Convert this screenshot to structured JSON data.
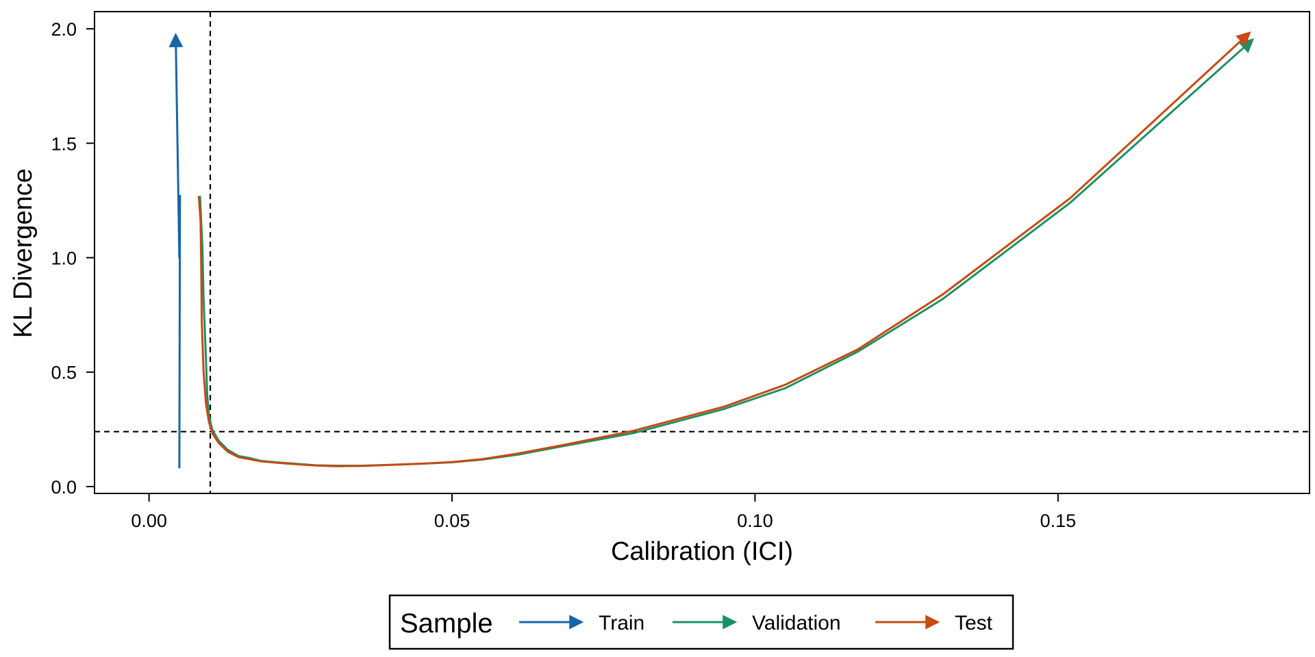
{
  "chart_data": {
    "type": "line",
    "xlabel": "Calibration (ICI)",
    "ylabel": "KL Divergence",
    "xlim": [
      -0.009,
      0.1915
    ],
    "ylim": [
      -0.03,
      2.075
    ],
    "xticks": [
      0.0,
      0.05,
      0.1,
      0.15
    ],
    "xtick_labels": [
      "0.00",
      "0.05",
      "0.10",
      "0.15"
    ],
    "yticks": [
      0.0,
      0.5,
      1.0,
      1.5,
      2.0
    ],
    "ytick_labels": [
      "0.0",
      "0.5",
      "1.0",
      "1.5",
      "2.0"
    ],
    "grid": false,
    "reference_lines": {
      "vertical_x": 0.0101,
      "horizontal_y": 0.24
    },
    "legend": {
      "title": "Sample",
      "position": "bottom",
      "entries": [
        "Train",
        "Validation",
        "Test"
      ]
    },
    "series": [
      {
        "name": "Train",
        "color": "#1764ab",
        "x": [
          0.005,
          0.0051,
          0.005,
          0.0044
        ],
        "y": [
          0.08,
          1.27,
          1.0,
          1.97
        ]
      },
      {
        "name": "Validation",
        "color": "#1b9066",
        "x": [
          0.0084,
          0.0088,
          0.009,
          0.0094,
          0.0096,
          0.0099,
          0.0104,
          0.0115,
          0.013,
          0.0148,
          0.0165,
          0.0185,
          0.021,
          0.024,
          0.0275,
          0.031,
          0.035,
          0.04,
          0.045,
          0.05,
          0.055,
          0.061,
          0.069,
          0.08,
          0.095,
          0.105,
          0.117,
          0.131,
          0.152,
          0.182
        ],
        "y": [
          1.27,
          1.05,
          0.82,
          0.55,
          0.4,
          0.31,
          0.25,
          0.2,
          0.16,
          0.133,
          0.125,
          0.112,
          0.106,
          0.1,
          0.093,
          0.091,
          0.091,
          0.095,
          0.1,
          0.106,
          0.118,
          0.14,
          0.18,
          0.234,
          0.34,
          0.43,
          0.59,
          0.82,
          1.24,
          1.95
        ]
      },
      {
        "name": "Test",
        "color": "#c84a10",
        "x": [
          0.0082,
          0.0085,
          0.0086,
          0.0087,
          0.009,
          0.0094,
          0.0099,
          0.0105,
          0.0115,
          0.013,
          0.0148,
          0.0165,
          0.0185,
          0.021,
          0.024,
          0.0275,
          0.031,
          0.035,
          0.04,
          0.045,
          0.05,
          0.055,
          0.061,
          0.069,
          0.08,
          0.095,
          0.105,
          0.117,
          0.131,
          0.152,
          0.1815
        ],
        "y": [
          1.27,
          1.16,
          0.98,
          0.72,
          0.5,
          0.36,
          0.28,
          0.23,
          0.19,
          0.152,
          0.128,
          0.12,
          0.11,
          0.104,
          0.098,
          0.092,
          0.089,
          0.09,
          0.095,
          0.1,
          0.107,
          0.12,
          0.145,
          0.185,
          0.244,
          0.35,
          0.445,
          0.6,
          0.84,
          1.26,
          1.98
        ]
      }
    ]
  }
}
